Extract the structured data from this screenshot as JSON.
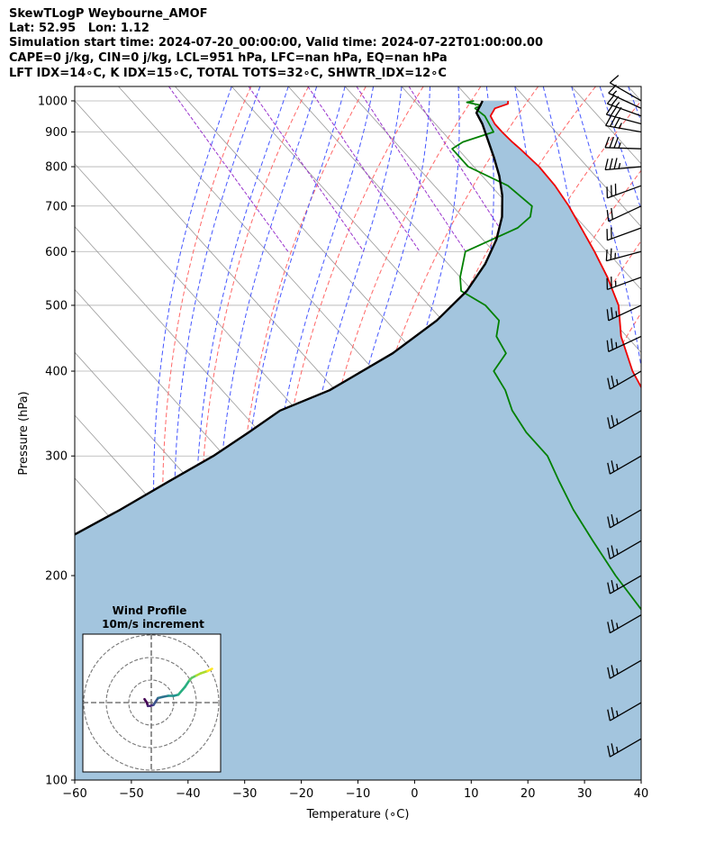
{
  "header": {
    "line1": "SkewTLogP Weybourne_AMOF",
    "line2": "Lat: 52.95   Lon: 1.12",
    "line3": "Simulation start time: 2024-07-20_00:00:00, Valid time: 2024-07-22T01:00:00.00",
    "line4": "CAPE=0 j/kg, CIN=0 j/kg, LCL=951 hPa, LFC=nan hPa, EQ=nan hPa",
    "line5": "LFT IDX=14∘C, K IDX=15∘C, TOTAL TOTS=32∘C, SHWTR_IDX=12∘C"
  },
  "chart_data": {
    "type": "line",
    "subtype": "skew-t log-p",
    "xlabel": "Temperature (∘C)",
    "ylabel": "Pressure (hPa)",
    "xlim": [
      -60,
      40
    ],
    "ylim": [
      1050,
      100
    ],
    "y_scale": "log",
    "x_ticks": [
      -60,
      -50,
      -40,
      -30,
      -20,
      -10,
      0,
      10,
      20,
      30,
      40
    ],
    "x_tick_labels": [
      "−60",
      "−50",
      "−40",
      "−30",
      "−20",
      "−10",
      "0",
      "10",
      "20",
      "30",
      "40"
    ],
    "y_ticks": [
      1000,
      900,
      800,
      700,
      600,
      500,
      400,
      300,
      200,
      100
    ],
    "y_tick_labels": [
      "1000",
      "900",
      "800",
      "700",
      "600",
      "500",
      "400",
      "300",
      "200",
      "100"
    ],
    "grid": true,
    "skew_deg_per_decade": 108,
    "colors": {
      "temperature": "#ee0000",
      "dewpoint": "#008000",
      "parcel": "#000000",
      "fill": "#a3c5de",
      "dry_adiabat": "#ff6666",
      "moist_adiabat": "#4455ff",
      "mixing_ratio": "#9933cc",
      "isotherm": "#999999"
    },
    "series": [
      {
        "key": "temperature",
        "points": [
          [
            16.5,
            1000
          ],
          [
            16,
            990
          ],
          [
            13,
            975
          ],
          [
            11,
            950
          ],
          [
            10.5,
            925
          ],
          [
            10.5,
            900
          ],
          [
            10.7,
            870
          ],
          [
            11,
            850
          ],
          [
            11.5,
            800
          ],
          [
            11.3,
            750
          ],
          [
            10.5,
            700
          ],
          [
            9.2,
            650
          ],
          [
            7.8,
            600
          ],
          [
            6,
            550
          ],
          [
            3.5,
            500
          ],
          [
            -1,
            450
          ],
          [
            -4.5,
            400
          ],
          [
            -7,
            350
          ],
          [
            -9,
            300
          ],
          [
            -11.5,
            260
          ],
          [
            -14,
            230
          ],
          [
            -17,
            200
          ],
          [
            -20,
            180
          ],
          [
            -23,
            165
          ],
          [
            -26,
            150
          ],
          [
            -30,
            130
          ],
          [
            -34,
            115
          ],
          [
            -35.5,
            100
          ]
        ]
      },
      {
        "key": "dewpoint",
        "points": [
          [
            10.5,
            1000
          ],
          [
            9,
            995
          ],
          [
            11,
            985
          ],
          [
            9.5,
            975
          ],
          [
            10,
            950
          ],
          [
            9.5,
            925
          ],
          [
            9,
            900
          ],
          [
            2,
            870
          ],
          [
            -1,
            850
          ],
          [
            -1,
            825
          ],
          [
            -1,
            800
          ],
          [
            3,
            750
          ],
          [
            4,
            700
          ],
          [
            2,
            675
          ],
          [
            -2,
            650
          ],
          [
            -15,
            600
          ],
          [
            -20,
            550
          ],
          [
            -22,
            525
          ],
          [
            -20,
            500
          ],
          [
            -20,
            475
          ],
          [
            -23,
            450
          ],
          [
            -24,
            425
          ],
          [
            -29,
            400
          ],
          [
            -30,
            375
          ],
          [
            -32,
            350
          ],
          [
            -33,
            325
          ],
          [
            -33,
            300
          ],
          [
            -35,
            275
          ],
          [
            -37,
            250
          ],
          [
            -38.5,
            225
          ],
          [
            -40,
            200
          ],
          [
            -41,
            175
          ],
          [
            -42,
            160
          ],
          [
            -44,
            150
          ],
          [
            -46,
            140
          ],
          [
            -47,
            130
          ],
          [
            -48,
            120
          ],
          [
            -48,
            110
          ],
          [
            -46,
            100
          ]
        ]
      },
      {
        "key": "parcel",
        "points": [
          [
            12,
            1000
          ],
          [
            9,
            960
          ],
          [
            8.3,
            925
          ],
          [
            6.7,
            875
          ],
          [
            5,
            825
          ],
          [
            3,
            775
          ],
          [
            0.4,
            725
          ],
          [
            -3,
            675
          ],
          [
            -7.6,
            625
          ],
          [
            -13.5,
            575
          ],
          [
            -21,
            525
          ],
          [
            -31,
            475
          ],
          [
            -44,
            425
          ],
          [
            -61,
            375
          ],
          [
            -73,
            350
          ],
          [
            -82,
            325
          ],
          [
            -92,
            300
          ],
          [
            -104,
            275
          ],
          [
            -117,
            250
          ],
          [
            -132,
            225
          ],
          [
            -150,
            200
          ],
          [
            -170,
            175
          ],
          [
            -196,
            150
          ],
          [
            -230,
            125
          ],
          [
            -272,
            100
          ]
        ]
      }
    ],
    "wind_barbs": [
      {
        "p": 1000,
        "speed": 10,
        "dir": 300
      },
      {
        "p": 975,
        "speed": 15,
        "dir": 295
      },
      {
        "p": 950,
        "speed": 25,
        "dir": 290
      },
      {
        "p": 925,
        "speed": 30,
        "dir": 285
      },
      {
        "p": 900,
        "speed": 35,
        "dir": 280
      },
      {
        "p": 850,
        "speed": 35,
        "dir": 272
      },
      {
        "p": 800,
        "speed": 35,
        "dir": 265
      },
      {
        "p": 750,
        "speed": 30,
        "dir": 250
      },
      {
        "p": 700,
        "speed": 20,
        "dir": 245
      },
      {
        "p": 650,
        "speed": 20,
        "dir": 250
      },
      {
        "p": 600,
        "speed": 25,
        "dir": 255
      },
      {
        "p": 550,
        "speed": 25,
        "dir": 250
      },
      {
        "p": 500,
        "speed": 25,
        "dir": 245
      },
      {
        "p": 450,
        "speed": 25,
        "dir": 245
      },
      {
        "p": 400,
        "speed": 25,
        "dir": 240
      },
      {
        "p": 350,
        "speed": 25,
        "dir": 240
      },
      {
        "p": 300,
        "speed": 25,
        "dir": 240
      },
      {
        "p": 250,
        "speed": 25,
        "dir": 240
      },
      {
        "p": 225,
        "speed": 25,
        "dir": 240
      },
      {
        "p": 200,
        "speed": 25,
        "dir": 240
      },
      {
        "p": 175,
        "speed": 25,
        "dir": 240
      },
      {
        "p": 150,
        "speed": 25,
        "dir": 240
      },
      {
        "p": 130,
        "speed": 25,
        "dir": 240
      },
      {
        "p": 115,
        "speed": 25,
        "dir": 240
      }
    ],
    "inset": {
      "title": "Wind Profile",
      "subtitle": "10m/s increment",
      "ring_count": 3,
      "hodograph_uv": [
        [
          -3,
          1.5
        ],
        [
          -2,
          0
        ],
        [
          -1.5,
          -1.5
        ],
        [
          -0.5,
          -1.5
        ],
        [
          1,
          -1
        ],
        [
          2,
          0.5
        ],
        [
          3,
          2
        ],
        [
          5,
          2.5
        ],
        [
          7.5,
          3
        ],
        [
          10,
          3
        ],
        [
          12,
          3.5
        ],
        [
          15,
          7
        ],
        [
          17,
          10
        ],
        [
          18,
          11
        ],
        [
          20,
          12
        ],
        [
          22,
          13
        ],
        [
          25,
          14
        ],
        [
          27,
          15
        ]
      ],
      "hodograph_colors": [
        "#440154",
        "#472878",
        "#3b528b",
        "#2c728e",
        "#21918c",
        "#28ae80",
        "#5ec962",
        "#addc30",
        "#fde725"
      ]
    }
  }
}
